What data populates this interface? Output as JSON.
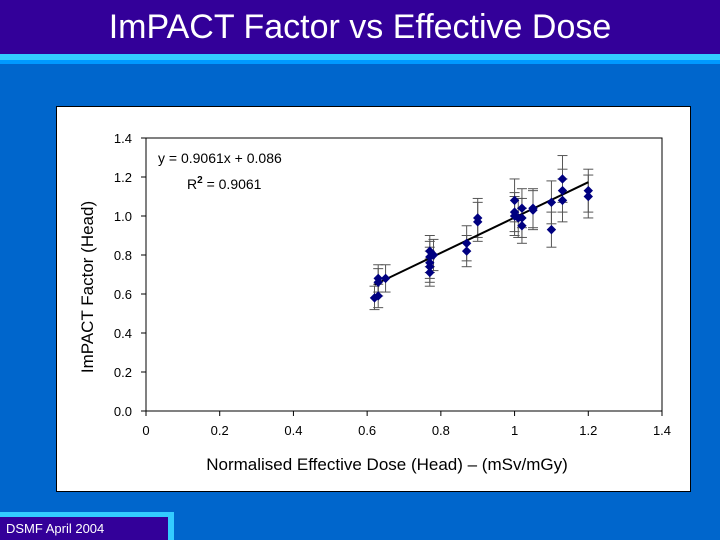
{
  "slide": {
    "title": "ImPACT Factor vs Effective Dose",
    "footer": "DSMF April 2004",
    "colors": {
      "title_bg": "#330099",
      "page_bg": "#0066CC",
      "accent": "#33CCFF",
      "marker": "#000080"
    }
  },
  "chart_data": {
    "type": "scatter",
    "xlabel": "Normalised Effective Dose (Head) – (mSv/mGy)",
    "ylabel": "ImPACT Factor (Head)",
    "xlim": [
      0,
      1.4
    ],
    "ylim": [
      0,
      1.4
    ],
    "x_ticks": [
      "0",
      "0.2",
      "0.4",
      "0.6",
      "0.8",
      "1",
      "1.2",
      "1.4"
    ],
    "y_ticks": [
      "0.0",
      "0.2",
      "0.4",
      "0.6",
      "0.8",
      "1.0",
      "1.2",
      "1.4"
    ],
    "grid": false,
    "equation": "y = 0.9061x + 0.086",
    "r2_label": "R",
    "r2_sup": "2",
    "r2_value": " = 0.9061",
    "trendline": {
      "slope": 0.9061,
      "intercept": 0.086,
      "x_range": [
        0.62,
        1.2
      ]
    },
    "points": [
      {
        "x": 0.62,
        "y": 0.58,
        "err": 0.06
      },
      {
        "x": 0.63,
        "y": 0.59,
        "err": 0.06
      },
      {
        "x": 0.63,
        "y": 0.66,
        "err": 0.07
      },
      {
        "x": 0.63,
        "y": 0.68,
        "err": 0.07
      },
      {
        "x": 0.65,
        "y": 0.68,
        "err": 0.07
      },
      {
        "x": 0.77,
        "y": 0.71,
        "err": 0.07
      },
      {
        "x": 0.77,
        "y": 0.74,
        "err": 0.08
      },
      {
        "x": 0.77,
        "y": 0.76,
        "err": 0.08
      },
      {
        "x": 0.77,
        "y": 0.79,
        "err": 0.08
      },
      {
        "x": 0.77,
        "y": 0.82,
        "err": 0.08
      },
      {
        "x": 0.78,
        "y": 0.8,
        "err": 0.08
      },
      {
        "x": 0.87,
        "y": 0.82,
        "err": 0.08
      },
      {
        "x": 0.87,
        "y": 0.86,
        "err": 0.09
      },
      {
        "x": 0.9,
        "y": 0.97,
        "err": 0.1
      },
      {
        "x": 0.9,
        "y": 0.99,
        "err": 0.1
      },
      {
        "x": 1.0,
        "y": 1.0,
        "err": 0.1
      },
      {
        "x": 1.0,
        "y": 1.02,
        "err": 0.1
      },
      {
        "x": 1.0,
        "y": 1.08,
        "err": 0.11
      },
      {
        "x": 1.01,
        "y": 0.99,
        "err": 0.1
      },
      {
        "x": 1.02,
        "y": 0.95,
        "err": 0.09
      },
      {
        "x": 1.02,
        "y": 0.99,
        "err": 0.1
      },
      {
        "x": 1.02,
        "y": 1.04,
        "err": 0.1
      },
      {
        "x": 1.05,
        "y": 1.03,
        "err": 0.1
      },
      {
        "x": 1.05,
        "y": 1.04,
        "err": 0.1
      },
      {
        "x": 1.1,
        "y": 0.93,
        "err": 0.09
      },
      {
        "x": 1.1,
        "y": 1.07,
        "err": 0.11
      },
      {
        "x": 1.13,
        "y": 1.08,
        "err": 0.11
      },
      {
        "x": 1.13,
        "y": 1.13,
        "err": 0.11
      },
      {
        "x": 1.13,
        "y": 1.19,
        "err": 0.12
      },
      {
        "x": 1.2,
        "y": 1.1,
        "err": 0.11
      },
      {
        "x": 1.2,
        "y": 1.13,
        "err": 0.11
      }
    ]
  }
}
